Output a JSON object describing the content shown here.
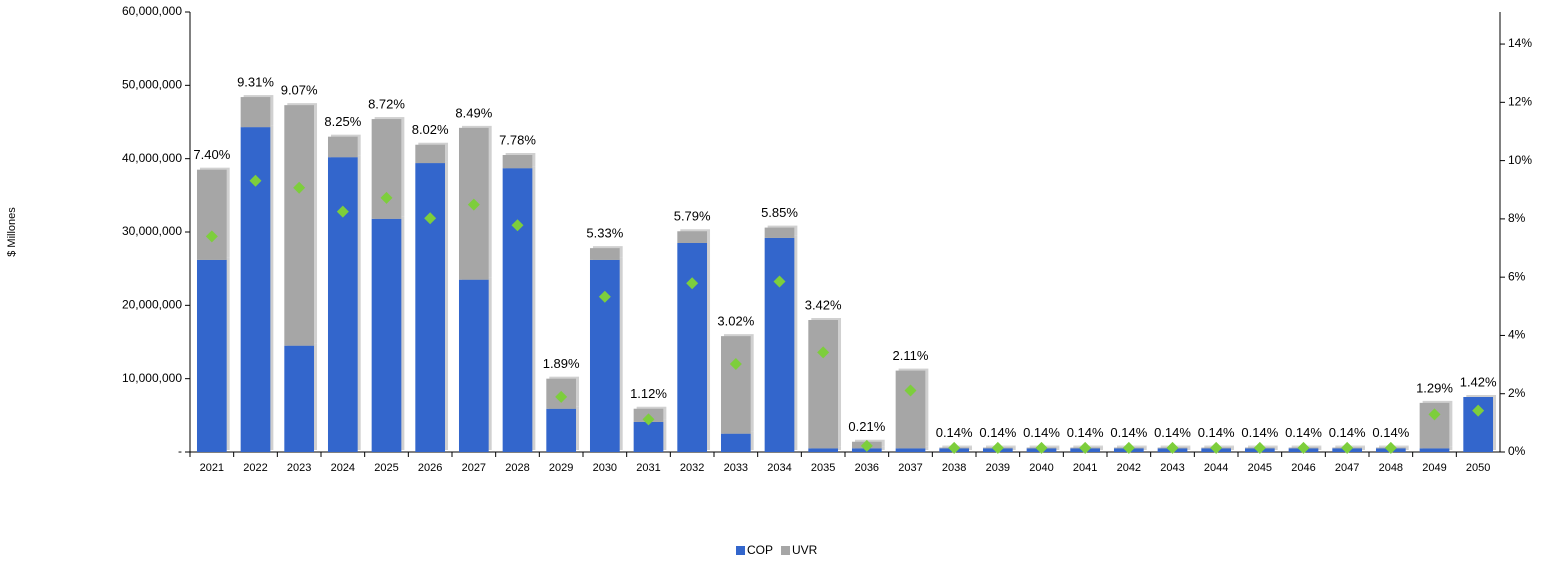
{
  "chart_data": {
    "type": "bar",
    "stacked": true,
    "y_label": "$ Millones",
    "categories": [
      "2021",
      "2022",
      "2023",
      "2024",
      "2025",
      "2026",
      "2027",
      "2028",
      "2029",
      "2030",
      "2031",
      "2032",
      "2033",
      "2034",
      "2035",
      "2036",
      "2037",
      "2038",
      "2039",
      "2040",
      "2041",
      "2042",
      "2043",
      "2044",
      "2045",
      "2046",
      "2047",
      "2048",
      "2049",
      "2050"
    ],
    "series": [
      {
        "name": "COP",
        "color": "#3366cc",
        "values": [
          26200000,
          44300000,
          14500000,
          40200000,
          31800000,
          39400000,
          23500000,
          38700000,
          5900000,
          26200000,
          4100000,
          28500000,
          2500000,
          29200000,
          500000,
          500000,
          500000,
          500000,
          500000,
          500000,
          500000,
          500000,
          500000,
          500000,
          500000,
          500000,
          500000,
          500000,
          500000,
          7500000
        ]
      },
      {
        "name": "UVR",
        "color": "#a6a6a6",
        "values": [
          12300000,
          4100000,
          32800000,
          2800000,
          13600000,
          2500000,
          20700000,
          1800000,
          4100000,
          1600000,
          1800000,
          1600000,
          13300000,
          1400000,
          17500000,
          900000,
          10600000,
          100000,
          100000,
          100000,
          100000,
          100000,
          100000,
          100000,
          100000,
          100000,
          100000,
          100000,
          6200000,
          0
        ]
      },
      {
        "type": "scatter",
        "marker": "diamond",
        "axis": "y2",
        "color": "#7dce3c",
        "values": [
          7.4,
          9.31,
          9.07,
          8.25,
          8.72,
          8.02,
          8.49,
          7.78,
          1.89,
          5.33,
          1.12,
          5.79,
          3.02,
          5.85,
          3.42,
          0.21,
          2.11,
          0.14,
          0.14,
          0.14,
          0.14,
          0.14,
          0.14,
          0.14,
          0.14,
          0.14,
          0.14,
          0.14,
          1.29,
          1.42
        ],
        "value_labels": [
          "7.40%",
          "9.31%",
          "9.07%",
          "8.25%",
          "8.72%",
          "8.02%",
          "8.49%",
          "7.78%",
          "1.89%",
          "5.33%",
          "1.12%",
          "5.79%",
          "3.02%",
          "5.85%",
          "3.42%",
          "0.21%",
          "2.11%",
          "0.14%",
          "0.14%",
          "0.14%",
          "0.14%",
          "0.14%",
          "0.14%",
          "0.14%",
          "0.14%",
          "0.14%",
          "0.14%",
          "0.14%",
          "1.29%",
          "1.42%"
        ]
      }
    ],
    "ylim": [
      0,
      60000000
    ],
    "yticks": [
      {
        "value": 0,
        "label": "-"
      },
      {
        "value": 10000000,
        "label": "10,000,000"
      },
      {
        "value": 20000000,
        "label": "20,000,000"
      },
      {
        "value": 30000000,
        "label": "30,000,000"
      },
      {
        "value": 40000000,
        "label": "40,000,000"
      },
      {
        "value": 50000000,
        "label": "50,000,000"
      },
      {
        "value": 60000000,
        "label": "60,000,000"
      }
    ],
    "y2lim": [
      0,
      15.1
    ],
    "y2ticks": [
      {
        "value": 0,
        "label": "0%"
      },
      {
        "value": 2,
        "label": "2%"
      },
      {
        "value": 4,
        "label": "4%"
      },
      {
        "value": 6,
        "label": "6%"
      },
      {
        "value": 8,
        "label": "8%"
      },
      {
        "value": 10,
        "label": "10%"
      },
      {
        "value": 12,
        "label": "12%"
      },
      {
        "value": 14,
        "label": "14%"
      }
    ],
    "legend": "bottom"
  }
}
